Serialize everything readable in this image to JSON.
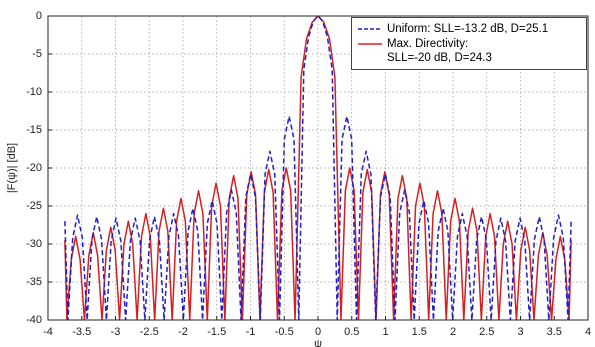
{
  "chart_data": {
    "type": "line",
    "xlabel": "ψ",
    "ylabel": "|F(ψ)|  [dB]",
    "xlim": [
      -4,
      4
    ],
    "ylim": [
      -40,
      0
    ],
    "xticks": [
      -4,
      -3.5,
      -3,
      -2.5,
      -2,
      -1.5,
      -1,
      -0.5,
      0,
      0.5,
      1,
      1.5,
      2,
      2.5,
      3,
      3.5,
      4
    ],
    "yticks": [
      -40,
      -35,
      -30,
      -25,
      -20,
      -15,
      -10,
      -5,
      0
    ],
    "grid": true,
    "legend": "upper right",
    "series": [
      {
        "name": "Uniform: SLL=-13.2 dB, D=25.1",
        "color": "#1f1fcc",
        "style": "dashed",
        "x": [
          -3.75,
          -3.705,
          -3.634,
          -3.563,
          -3.491,
          -3.42,
          -3.349,
          -3.278,
          -3.206,
          -3.135,
          -3.064,
          -2.993,
          -2.921,
          -2.85,
          -2.779,
          -2.708,
          -2.636,
          -2.565,
          -2.494,
          -2.423,
          -2.351,
          -2.28,
          -2.209,
          -2.138,
          -2.066,
          -1.995,
          -1.924,
          -1.853,
          -1.781,
          -1.71,
          -1.639,
          -1.568,
          -1.496,
          -1.425,
          -1.354,
          -1.283,
          -1.211,
          -1.14,
          -1.069,
          -0.998,
          -0.926,
          -0.855,
          -0.784,
          -0.713,
          -0.641,
          -0.57,
          -0.499,
          -0.428,
          -0.356,
          -0.285,
          -0.21,
          -0.14,
          -0.07,
          0,
          0.07,
          0.14,
          0.21,
          0.285,
          0.356,
          0.428,
          0.499,
          0.57,
          0.641,
          0.713,
          0.784,
          0.855,
          0.926,
          0.998,
          1.069,
          1.14,
          1.211,
          1.283,
          1.354,
          1.425,
          1.496,
          1.568,
          1.639,
          1.71,
          1.781,
          1.853,
          1.924,
          1.995,
          2.066,
          2.138,
          2.209,
          2.28,
          2.351,
          2.423,
          2.494,
          2.565,
          2.636,
          2.708,
          2.779,
          2.85,
          2.921,
          2.993,
          3.064,
          3.135,
          3.206,
          3.278,
          3.349,
          3.42,
          3.491,
          3.563,
          3.634,
          3.705,
          3.75
        ],
        "values": [
          -27,
          -40,
          -29.2,
          -26.2,
          -29.2,
          -40,
          -29.4,
          -26.4,
          -29.4,
          -40,
          -29.6,
          -26.6,
          -29.6,
          -40,
          -29.6,
          -26.6,
          -29.6,
          -40,
          -29.4,
          -26.4,
          -29.4,
          -40,
          -29,
          -26,
          -29,
          -40,
          -28.3,
          -25.3,
          -28.3,
          -40,
          -27.3,
          -24.3,
          -27.3,
          -40,
          -25.9,
          -22.9,
          -25.9,
          -40,
          -23.8,
          -20.8,
          -23.8,
          -40,
          -20.8,
          -17.8,
          -20.8,
          -40,
          -16.2,
          -13.2,
          -16.2,
          -40,
          -7,
          -2.8,
          -0.7,
          0,
          -0.7,
          -2.8,
          -7,
          -40,
          -16.2,
          -13.2,
          -16.2,
          -40,
          -20.8,
          -17.8,
          -20.8,
          -40,
          -23.8,
          -20.8,
          -23.8,
          -40,
          -25.9,
          -22.9,
          -25.9,
          -40,
          -27.3,
          -24.3,
          -27.3,
          -40,
          -28.3,
          -25.3,
          -28.3,
          -40,
          -29,
          -26,
          -29,
          -40,
          -29.4,
          -26.4,
          -29.4,
          -40,
          -29.6,
          -26.6,
          -29.6,
          -40,
          -29.6,
          -26.6,
          -29.6,
          -40,
          -29.4,
          -26.4,
          -29.4,
          -40,
          -29.2,
          -26.2,
          -29.2,
          -40,
          -27
        ]
      },
      {
        "name": "Max. Directivity:\nSLL=-20 dB, D=24.3",
        "color": "#d42020",
        "style": "solid",
        "x": [
          -3.75,
          -3.72,
          -3.655,
          -3.59,
          -3.525,
          -3.46,
          -3.395,
          -3.33,
          -3.265,
          -3.2,
          -3.135,
          -3.07,
          -3.005,
          -2.94,
          -2.875,
          -2.81,
          -2.745,
          -2.68,
          -2.615,
          -2.55,
          -2.485,
          -2.42,
          -2.355,
          -2.29,
          -2.225,
          -2.16,
          -2.095,
          -2.03,
          -1.965,
          -1.9,
          -1.835,
          -1.77,
          -1.705,
          -1.64,
          -1.575,
          -1.51,
          -1.445,
          -1.38,
          -1.315,
          -1.25,
          -1.185,
          -1.12,
          -1.055,
          -0.99,
          -0.925,
          -0.86,
          -0.795,
          -0.73,
          -0.665,
          -0.6,
          -0.535,
          -0.47,
          -0.405,
          -0.34,
          -0.25,
          -0.17,
          -0.085,
          0,
          0.085,
          0.17,
          0.25,
          0.34,
          0.405,
          0.47,
          0.535,
          0.6,
          0.665,
          0.73,
          0.795,
          0.86,
          0.925,
          0.99,
          1.055,
          1.12,
          1.185,
          1.25,
          1.315,
          1.38,
          1.445,
          1.51,
          1.575,
          1.64,
          1.705,
          1.77,
          1.835,
          1.9,
          1.965,
          2.03,
          2.095,
          2.16,
          2.225,
          2.29,
          2.355,
          2.42,
          2.485,
          2.55,
          2.615,
          2.68,
          2.745,
          2.81,
          2.875,
          2.94,
          3.005,
          3.07,
          3.135,
          3.2,
          3.265,
          3.33,
          3.395,
          3.46,
          3.525,
          3.59,
          3.655,
          3.72,
          3.75
        ],
        "values": [
          -29.5,
          -40,
          -32,
          -29,
          -32,
          -40,
          -31.5,
          -28.5,
          -31.5,
          -40,
          -30.8,
          -27.8,
          -30.8,
          -40,
          -30,
          -27,
          -30,
          -40,
          -29,
          -26,
          -29,
          -40,
          -28.3,
          -25.3,
          -28.3,
          -40,
          -27,
          -24,
          -27,
          -40,
          -26,
          -23,
          -26,
          -40,
          -25,
          -22,
          -25,
          -40,
          -24,
          -21,
          -24,
          -40,
          -23.5,
          -20.5,
          -23.5,
          -40,
          -23.2,
          -20.2,
          -23.2,
          -40,
          -23,
          -20,
          -23,
          -40,
          -8,
          -3,
          -0.8,
          0,
          -0.8,
          -3,
          -8,
          -40,
          -23,
          -20,
          -23,
          -40,
          -23.2,
          -20.2,
          -23.2,
          -40,
          -23.5,
          -20.5,
          -23.5,
          -40,
          -24,
          -21,
          -24,
          -40,
          -25,
          -22,
          -25,
          -40,
          -26,
          -23,
          -26,
          -40,
          -27,
          -24,
          -27,
          -40,
          -28.3,
          -25.3,
          -28.3,
          -40,
          -29,
          -26,
          -29,
          -40,
          -30,
          -27,
          -30,
          -40,
          -30.8,
          -27.8,
          -30.8,
          -40,
          -31.5,
          -28.5,
          -31.5,
          -40,
          -32,
          -29,
          -32,
          -40,
          -29.5
        ]
      }
    ]
  }
}
